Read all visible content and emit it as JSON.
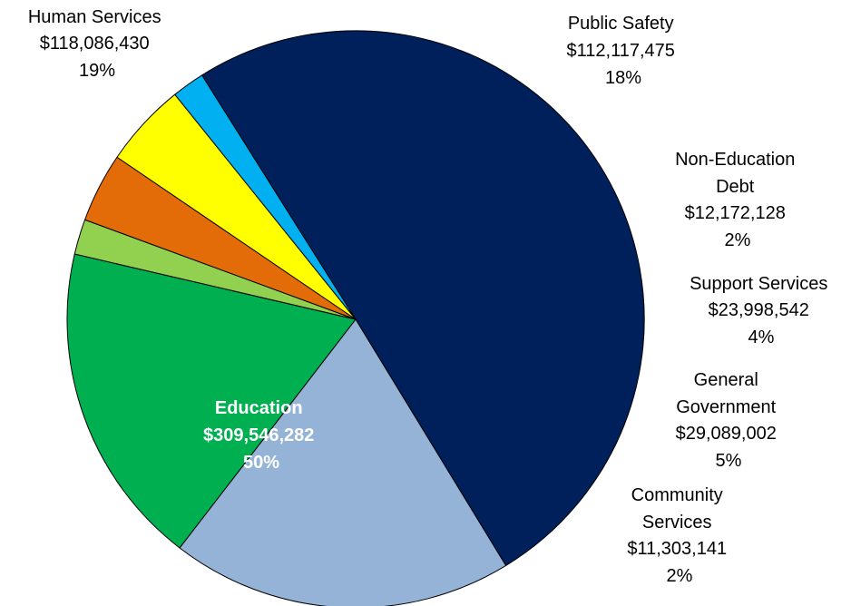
{
  "chart_data": {
    "type": "pie",
    "slices": [
      {
        "name": "Education",
        "value_text": "$309,546,282",
        "pct_text": "50%",
        "value": 309546282,
        "color": "#00205B"
      },
      {
        "name": "Human Services",
        "value_text": "$118,086,430",
        "pct_text": "19%",
        "value": 118086430,
        "color": "#95B3D7"
      },
      {
        "name": "Public Safety",
        "value_text": "$112,117,475",
        "pct_text": "18%",
        "value": 112117475,
        "color": "#00B050"
      },
      {
        "name": "Non-Education Debt",
        "value_text": "$12,172,128",
        "pct_text": "2%",
        "value": 12172128,
        "color": "#92D050"
      },
      {
        "name": "Support Services",
        "value_text": "$23,998,542",
        "pct_text": "4%",
        "value": 23998542,
        "color": "#E36C09"
      },
      {
        "name": "General Government",
        "value_text": "$29,089,002",
        "pct_text": "5%",
        "value": 29089002,
        "color": "#FFFF00"
      },
      {
        "name": "Community Services",
        "value_text": "$11,303,141",
        "pct_text": "2%",
        "value": 11303141,
        "color": "#00B0F0"
      }
    ]
  },
  "labels": {
    "education": {
      "l1": "Education",
      "l2": "$309,546,282",
      "l3": "50%"
    },
    "human_services": {
      "l1": "Human Services",
      "l2": "$118,086,430",
      "l3": "19%"
    },
    "public_safety": {
      "l1": "Public Safety",
      "l2": "$112,117,475",
      "l3": "18%"
    },
    "non_education_debt": {
      "l1": "Non-Education",
      "l2": "Debt",
      "l3": "$12,172,128",
      "l4": "2%"
    },
    "support_services": {
      "l1": "Support Services",
      "l2": "$23,998,542",
      "l3": "4%"
    },
    "general_government": {
      "l1": "General",
      "l2": "Government",
      "l3": "$29,089,002",
      "l4": "5%"
    },
    "community_services": {
      "l1": "Community",
      "l2": "Services",
      "l3": "$11,303,141",
      "l4": "2%"
    }
  }
}
